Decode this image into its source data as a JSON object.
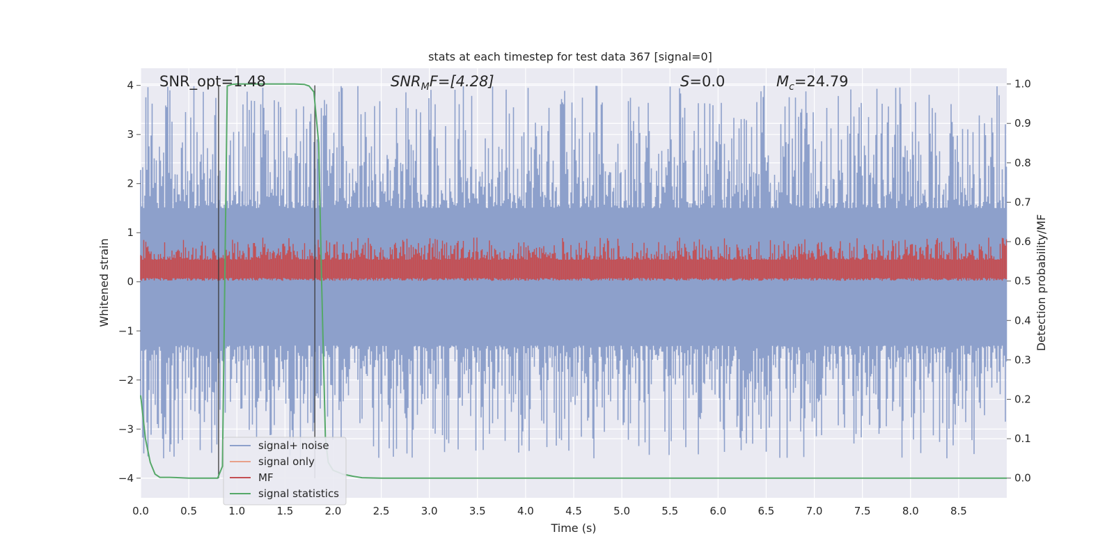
{
  "chart_data": {
    "type": "line",
    "title": "stats at each timestep for test data 367 [signal=0]",
    "xlabel": "Time (s)",
    "ylabel": "Whitened strain",
    "y2label": "Detection probability/MF",
    "xlim": [
      0.0,
      9.0
    ],
    "ylim": [
      -4.4,
      4.35
    ],
    "y2lim": [
      -0.05,
      1.04
    ],
    "xticks": [
      "0.0",
      "0.5",
      "1.0",
      "1.5",
      "2.0",
      "2.5",
      "3.0",
      "3.5",
      "4.0",
      "4.5",
      "5.0",
      "5.5",
      "6.0",
      "6.5",
      "7.0",
      "7.5",
      "8.0",
      "8.5"
    ],
    "yticks": [
      "4",
      "3",
      "2",
      "1",
      "0",
      "−1",
      "−2",
      "−3",
      "−4"
    ],
    "y2ticks": [
      "1.0",
      "0.9",
      "0.8",
      "0.7",
      "0.6",
      "0.5",
      "0.4",
      "0.3",
      "0.2",
      "0.1",
      "0.0"
    ],
    "grid": true,
    "annotations": {
      "snr_opt": "SNR_opt=1.48",
      "snr_mf_main": "SNR",
      "snr_mf_sub": "M",
      "snr_mf_rest": "F=[4.28]",
      "s_main": "S",
      "s_rest": "=0.0",
      "mc_main": "M",
      "mc_sub": "c",
      "mc_rest": "=24.79"
    },
    "vertical_markers_x": [
      0.81,
      1.81
    ],
    "series": [
      {
        "name": "signal+ noise",
        "color": "#8da0cb",
        "envelope": {
          "upper_range": [
            1.5,
            4.0
          ],
          "lower_range": [
            -1.3,
            -3.6
          ]
        }
      },
      {
        "name": "signal only",
        "color": "#e8a08a"
      },
      {
        "name": "MF",
        "color": "#c44e52",
        "envelope": {
          "upper_range": [
            0.45,
            0.9
          ],
          "lower_range": [
            0.05,
            0.0
          ]
        }
      },
      {
        "name": "signal statistics",
        "color": "#55a868",
        "axis": "right",
        "x": [
          0.0,
          0.05,
          0.1,
          0.15,
          0.2,
          0.3,
          0.4,
          0.5,
          0.6,
          0.7,
          0.75,
          0.8,
          0.85,
          0.9,
          0.95,
          1.0,
          1.2,
          1.4,
          1.6,
          1.7,
          1.75,
          1.8,
          1.85,
          1.88,
          1.92,
          1.95,
          2.0,
          2.05,
          2.1,
          2.2,
          2.3,
          2.5,
          3.0,
          4.0,
          5.0,
          6.0,
          7.0,
          8.0,
          9.0
        ],
        "values": [
          0.21,
          0.1,
          0.04,
          0.01,
          0.002,
          0.002,
          0.001,
          0.0,
          0.0,
          0.0,
          0.0,
          0.0,
          0.03,
          0.995,
          0.999,
          1.0,
          1.0,
          1.0,
          1.0,
          0.999,
          0.995,
          0.98,
          0.85,
          0.5,
          0.1,
          0.04,
          0.02,
          0.015,
          0.01,
          0.005,
          0.001,
          0.0,
          0.0,
          0.0,
          0.0,
          0.0,
          0.0,
          0.0,
          0.0
        ]
      }
    ],
    "legend": {
      "placement": "lower-left",
      "items": [
        "signal+ noise",
        "signal only",
        "MF",
        "signal statistics"
      ]
    }
  },
  "colors": {
    "background": "#eaeaf2",
    "grid": "#ffffff",
    "marker_line": "#3a3a3a"
  }
}
